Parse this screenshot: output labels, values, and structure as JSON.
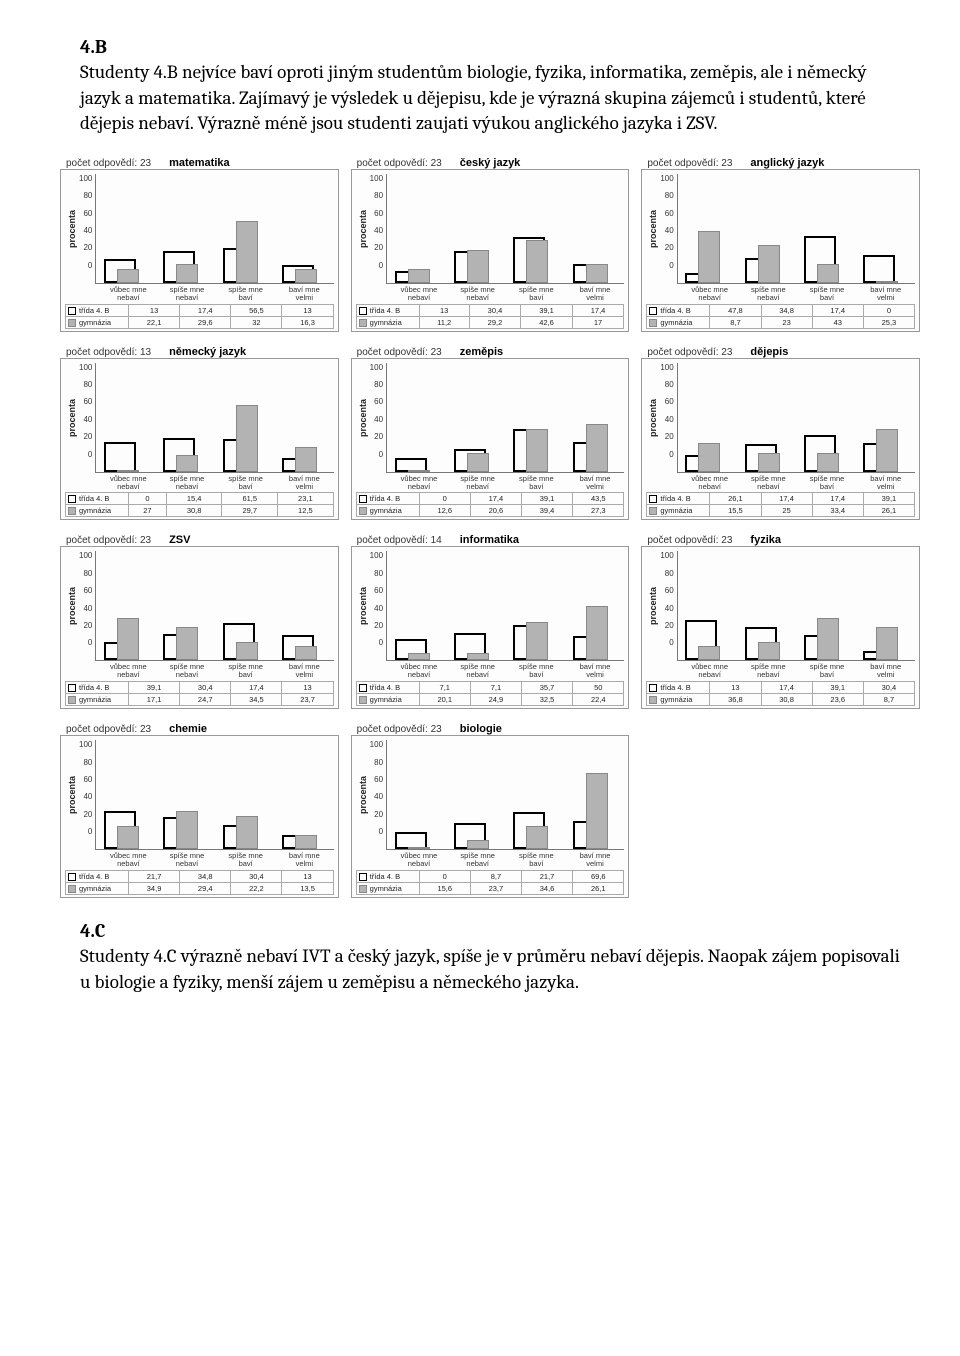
{
  "text": {
    "h4b": "4.B",
    "p4b": "Studenty 4.B nejvíce baví oproti jiným studentům biologie, fyzika, informatika, zeměpis, ale i německý jazyk a matematika. Zajímavý je výsledek u dějepisu, kde je výrazná skupina zájemců i studentů, které dějepis nebaví. Výrazně méně jsou studenti zaujati výukou anglického jazyka i ZSV.",
    "h4c": "4.C",
    "p4c": "Studenty 4.C výrazně nebaví IVT a český jazyk, spíše je v průměru nebaví dějepis. Naopak zájem popisovali u biologie a fyziky, menší zájem u zeměpisu a německého jazyka."
  },
  "common": {
    "ylab": "procenta",
    "count_label": "počet odpovědí:",
    "series_a": "třída 4. B",
    "series_b": "gymnázia",
    "cats": [
      "vůbec mne nebaví",
      "spíše mne nebaví",
      "spíše mne baví",
      "baví mne velmi"
    ],
    "cats_short": [
      "vůbec mne nebaví",
      "spíše mne nebaví",
      "spíše mne baví",
      "baví mne velmi"
    ],
    "yticks": [
      0,
      20,
      40,
      60,
      80,
      100
    ],
    "bar_a_color": "#b3b3b3",
    "bar_b_border": "#000000",
    "grid_border": "#999999",
    "ymax": 100
  },
  "charts": [
    [
      {
        "title": "matematika",
        "n": 23,
        "a": [
          13,
          17.4,
          56.5,
          13
        ],
        "b": [
          22.1,
          29.6,
          32,
          16.3
        ]
      },
      {
        "title": "český jazyk",
        "n": 23,
        "a": [
          13,
          30.4,
          39.1,
          17.4
        ],
        "b": [
          11.2,
          29.2,
          42.6,
          17
        ]
      },
      {
        "title": "anglický jazyk",
        "n": 23,
        "a": [
          47.8,
          34.8,
          17.4,
          0
        ],
        "b": [
          8.7,
          23,
          43,
          25.3
        ]
      }
    ],
    [
      {
        "title": "německý jazyk",
        "n": 13,
        "a": [
          0,
          15.4,
          61.5,
          23.1
        ],
        "b": [
          27,
          30.8,
          29.7,
          12.5
        ]
      },
      {
        "title": "zeměpis",
        "n": 23,
        "a": [
          0,
          17.4,
          39.1,
          43.5
        ],
        "b": [
          12.6,
          20.6,
          39.4,
          27.3
        ]
      },
      {
        "title": "dějepis",
        "n": 23,
        "a": [
          26.1,
          17.4,
          17.4,
          39.1
        ],
        "b": [
          15.5,
          25,
          33.4,
          26.1
        ]
      }
    ],
    [
      {
        "title": "ZSV",
        "n": 23,
        "a": [
          39.1,
          30.4,
          17.4,
          13
        ],
        "b": [
          17.1,
          24.7,
          34.5,
          23.7
        ]
      },
      {
        "title": "informatika",
        "n": 14,
        "a": [
          7.1,
          7.1,
          35.7,
          50
        ],
        "b": [
          20.1,
          24.9,
          32.5,
          22.4
        ]
      },
      {
        "title": "fyzika",
        "n": 23,
        "a": [
          13,
          17.4,
          39.1,
          30.4
        ],
        "b": [
          36.8,
          30.8,
          23.6,
          8.7
        ]
      }
    ],
    [
      {
        "title": "chemie",
        "n": 23,
        "a": [
          21.7,
          34.8,
          30.4,
          13
        ],
        "b": [
          34.9,
          29.4,
          22.2,
          13.5
        ]
      },
      {
        "title": "biologie",
        "n": 23,
        "a": [
          0,
          8.7,
          21.7,
          69.6
        ],
        "b": [
          15.6,
          23.7,
          34.6,
          26.1
        ]
      },
      null
    ]
  ]
}
